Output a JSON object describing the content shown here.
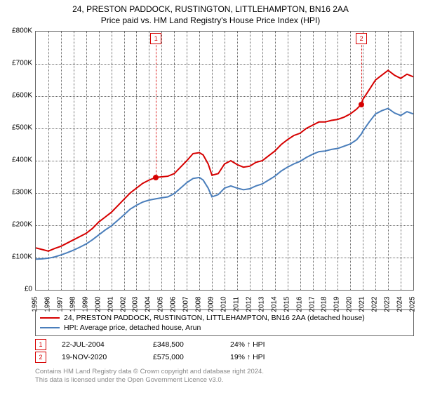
{
  "title_line1": "24, PRESTON PADDOCK, RUSTINGTON, LITTLEHAMPTON, BN16 2AA",
  "title_line2": "Price paid vs. HM Land Registry's House Price Index (HPI)",
  "chart": {
    "type": "line",
    "x_years": [
      1995,
      1996,
      1997,
      1998,
      1999,
      2000,
      2001,
      2002,
      2003,
      2004,
      2005,
      2006,
      2007,
      2008,
      2009,
      2010,
      2011,
      2012,
      2013,
      2014,
      2015,
      2016,
      2017,
      2018,
      2019,
      2020,
      2021,
      2022,
      2023,
      2024,
      2025
    ],
    "y_ticks": [
      0,
      100000,
      200000,
      300000,
      400000,
      500000,
      600000,
      700000,
      800000
    ],
    "y_tick_labels": [
      "£0",
      "£100K",
      "£200K",
      "£300K",
      "£400K",
      "£500K",
      "£600K",
      "£700K",
      "£800K"
    ],
    "ylim": [
      0,
      800000
    ],
    "background_color": "#ffffff",
    "grid_color": "#666666",
    "grid_style": "dotted",
    "label_fontsize": 10,
    "series": [
      {
        "name": "24, PRESTON PADDOCK, RUSTINGTON, LITTLEHAMPTON, BN16 2AA (detached house)",
        "color": "#d60000",
        "line_width": 2,
        "values": [
          [
            1995.0,
            130000
          ],
          [
            1995.5,
            125000
          ],
          [
            1996.0,
            120000
          ],
          [
            1996.5,
            128000
          ],
          [
            1997.0,
            135000
          ],
          [
            1997.5,
            145000
          ],
          [
            1998.0,
            155000
          ],
          [
            1998.5,
            165000
          ],
          [
            1999.0,
            175000
          ],
          [
            1999.5,
            190000
          ],
          [
            2000.0,
            210000
          ],
          [
            2000.5,
            225000
          ],
          [
            2001.0,
            240000
          ],
          [
            2001.5,
            260000
          ],
          [
            2002.0,
            280000
          ],
          [
            2002.5,
            300000
          ],
          [
            2003.0,
            315000
          ],
          [
            2003.5,
            330000
          ],
          [
            2004.0,
            340000
          ],
          [
            2004.55,
            348500
          ],
          [
            2005.0,
            350000
          ],
          [
            2005.5,
            352000
          ],
          [
            2006.0,
            360000
          ],
          [
            2006.5,
            380000
          ],
          [
            2007.0,
            400000
          ],
          [
            2007.5,
            422000
          ],
          [
            2008.0,
            425000
          ],
          [
            2008.3,
            418000
          ],
          [
            2008.7,
            390000
          ],
          [
            2009.0,
            355000
          ],
          [
            2009.5,
            360000
          ],
          [
            2010.0,
            390000
          ],
          [
            2010.5,
            400000
          ],
          [
            2011.0,
            388000
          ],
          [
            2011.5,
            380000
          ],
          [
            2012.0,
            383000
          ],
          [
            2012.5,
            395000
          ],
          [
            2013.0,
            400000
          ],
          [
            2013.5,
            415000
          ],
          [
            2014.0,
            430000
          ],
          [
            2014.5,
            450000
          ],
          [
            2015.0,
            465000
          ],
          [
            2015.5,
            478000
          ],
          [
            2016.0,
            485000
          ],
          [
            2016.5,
            500000
          ],
          [
            2017.0,
            510000
          ],
          [
            2017.5,
            520000
          ],
          [
            2018.0,
            520000
          ],
          [
            2018.5,
            525000
          ],
          [
            2019.0,
            528000
          ],
          [
            2019.5,
            535000
          ],
          [
            2020.0,
            545000
          ],
          [
            2020.5,
            560000
          ],
          [
            2020.88,
            575000
          ],
          [
            2021.0,
            590000
          ],
          [
            2021.5,
            620000
          ],
          [
            2022.0,
            650000
          ],
          [
            2022.5,
            665000
          ],
          [
            2023.0,
            680000
          ],
          [
            2023.5,
            665000
          ],
          [
            2024.0,
            655000
          ],
          [
            2024.5,
            668000
          ],
          [
            2025.0,
            660000
          ]
        ]
      },
      {
        "name": "HPI: Average price, detached house, Arun",
        "color": "#4a7ebb",
        "line_width": 2,
        "values": [
          [
            1995.0,
            95000
          ],
          [
            1995.5,
            96000
          ],
          [
            1996.0,
            98000
          ],
          [
            1996.5,
            102000
          ],
          [
            1997.0,
            108000
          ],
          [
            1997.5,
            115000
          ],
          [
            1998.0,
            123000
          ],
          [
            1998.5,
            132000
          ],
          [
            1999.0,
            142000
          ],
          [
            1999.5,
            155000
          ],
          [
            2000.0,
            170000
          ],
          [
            2000.5,
            185000
          ],
          [
            2001.0,
            198000
          ],
          [
            2001.5,
            215000
          ],
          [
            2002.0,
            232000
          ],
          [
            2002.5,
            250000
          ],
          [
            2003.0,
            262000
          ],
          [
            2003.5,
            272000
          ],
          [
            2004.0,
            278000
          ],
          [
            2004.55,
            282000
          ],
          [
            2005.0,
            285000
          ],
          [
            2005.5,
            288000
          ],
          [
            2006.0,
            298000
          ],
          [
            2006.5,
            315000
          ],
          [
            2007.0,
            332000
          ],
          [
            2007.5,
            345000
          ],
          [
            2008.0,
            348000
          ],
          [
            2008.3,
            340000
          ],
          [
            2008.7,
            315000
          ],
          [
            2009.0,
            288000
          ],
          [
            2009.5,
            295000
          ],
          [
            2010.0,
            315000
          ],
          [
            2010.5,
            322000
          ],
          [
            2011.0,
            315000
          ],
          [
            2011.5,
            310000
          ],
          [
            2012.0,
            313000
          ],
          [
            2012.5,
            322000
          ],
          [
            2013.0,
            328000
          ],
          [
            2013.5,
            340000
          ],
          [
            2014.0,
            352000
          ],
          [
            2014.5,
            368000
          ],
          [
            2015.0,
            380000
          ],
          [
            2015.5,
            390000
          ],
          [
            2016.0,
            398000
          ],
          [
            2016.5,
            410000
          ],
          [
            2017.0,
            420000
          ],
          [
            2017.5,
            428000
          ],
          [
            2018.0,
            430000
          ],
          [
            2018.5,
            435000
          ],
          [
            2019.0,
            438000
          ],
          [
            2019.5,
            445000
          ],
          [
            2020.0,
            452000
          ],
          [
            2020.5,
            465000
          ],
          [
            2020.88,
            483000
          ],
          [
            2021.0,
            492000
          ],
          [
            2021.5,
            520000
          ],
          [
            2022.0,
            545000
          ],
          [
            2022.5,
            555000
          ],
          [
            2023.0,
            562000
          ],
          [
            2023.5,
            548000
          ],
          [
            2024.0,
            540000
          ],
          [
            2024.5,
            552000
          ],
          [
            2025.0,
            545000
          ]
        ]
      }
    ],
    "sale_markers": [
      {
        "n": "1",
        "x": 2004.55,
        "y": 348500,
        "color": "#d60000"
      },
      {
        "n": "2",
        "x": 2020.88,
        "y": 575000,
        "color": "#d60000"
      }
    ]
  },
  "legend": {
    "items": [
      {
        "color": "#d60000",
        "label": "24, PRESTON PADDOCK, RUSTINGTON, LITTLEHAMPTON, BN16 2AA (detached house)"
      },
      {
        "color": "#4a7ebb",
        "label": "HPI: Average price, detached house, Arun"
      }
    ]
  },
  "sales": [
    {
      "n": "1",
      "color": "#d60000",
      "date": "22-JUL-2004",
      "price": "£348,500",
      "diff": "24% ↑ HPI"
    },
    {
      "n": "2",
      "color": "#d60000",
      "date": "19-NOV-2020",
      "price": "£575,000",
      "diff": "19% ↑ HPI"
    }
  ],
  "footer": {
    "line1": "Contains HM Land Registry data © Crown copyright and database right 2024.",
    "line2": "This data is licensed under the Open Government Licence v3.0."
  }
}
